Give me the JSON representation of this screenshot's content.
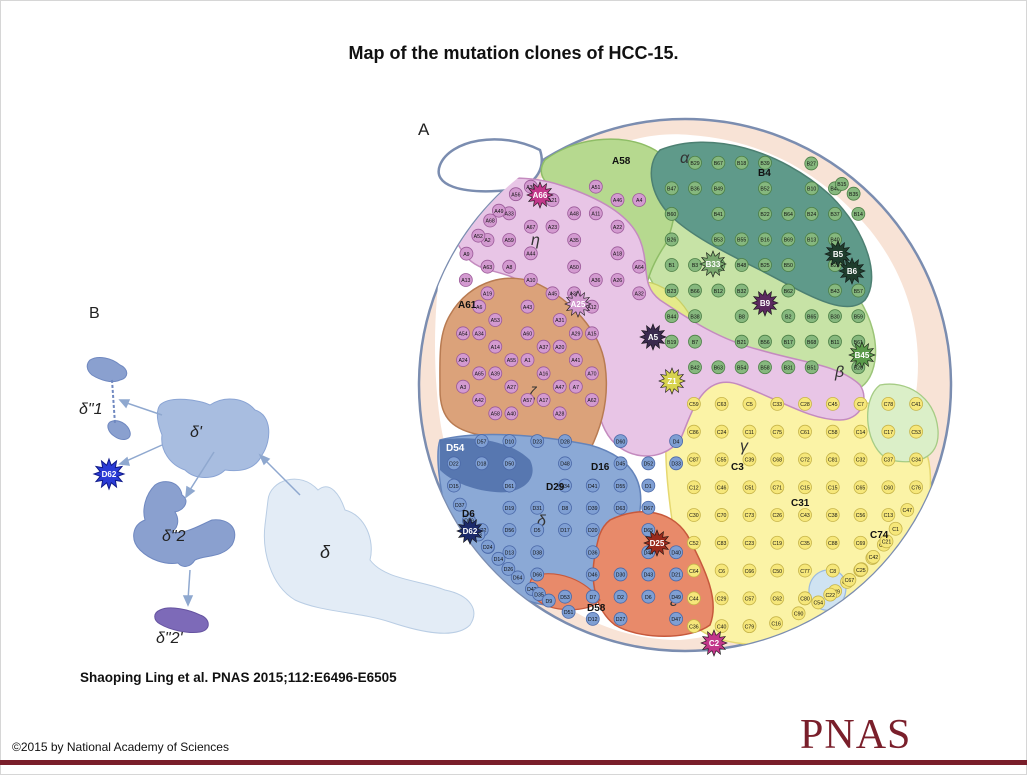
{
  "title": "Map of the mutation clones of HCC-15.",
  "citation": "Shaoping Ling et al. PNAS 2015;112:E6496-E6505",
  "copyright": "©2015 by National Academy of Sciences",
  "logo": "PNAS",
  "panelA": {
    "label": "A",
    "greek": [
      "α",
      "η",
      "ζ",
      "β",
      "γ",
      "δ",
      "ε"
    ],
    "highlights": [
      "A66",
      "A25",
      "A5",
      "Z1",
      "B33",
      "B9",
      "B5",
      "B6",
      "B45",
      "C2",
      "D25",
      "D62"
    ],
    "regionTexts": [
      "A61",
      "A58",
      "B4",
      "C3",
      "C31",
      "C74",
      "D16",
      "D29",
      "D54",
      "D6",
      "D58"
    ],
    "cells": [
      "A2",
      "A58",
      "A67",
      "A57",
      "A48",
      "A47",
      "A46",
      "A70",
      "A68",
      "A65",
      "A56",
      "A55",
      "A45",
      "A37",
      "A36",
      "A29",
      "A64",
      "A54",
      "A63",
      "A53",
      "A44",
      "A43",
      "A35",
      "A28",
      "A22",
      "A62",
      "A52",
      "A42",
      "A33",
      "A27",
      "A21",
      "A16",
      "A51",
      "A41",
      "A32",
      "A24",
      "A19",
      "A14",
      "A10",
      "A60",
      "A50",
      "A31",
      "A18",
      "A12",
      "A9",
      "A6",
      "A59",
      "A40",
      "A23",
      "A17",
      "A11",
      "A7",
      "A4",
      "A3",
      "A49",
      "A39",
      "A30",
      "A1",
      "A38",
      "A20",
      "A26",
      "A15",
      "A13",
      "A34",
      "A8",
      "B3",
      "B63",
      "B55",
      "B56",
      "B64",
      "B65",
      "B46",
      "B57",
      "B47",
      "B66",
      "B67",
      "B48",
      "B58",
      "B69",
      "B68",
      "B37",
      "B59",
      "B60",
      "B38",
      "B49",
      "B32",
      "B39",
      "B50",
      "B51",
      "B40",
      "B61",
      "B26",
      "B7",
      "B41",
      "B8",
      "B52",
      "B62",
      "B27",
      "B28",
      "B20",
      "B1",
      "B42",
      "B53",
      "B21",
      "B22",
      "B2",
      "B10",
      "B43",
      "B15",
      "B23",
      "B29",
      "B34",
      "B54",
      "B16",
      "B17",
      "B24",
      "B30",
      "B35",
      "B44",
      "B36",
      "B12",
      "B18",
      "B25",
      "B31",
      "B13",
      "B11",
      "B14",
      "B19",
      "C9",
      "C82",
      "C85",
      "C89",
      "C4",
      "C10",
      "C17",
      "C1",
      "C86",
      "C83",
      "C5",
      "C26",
      "C90",
      "C15",
      "C27",
      "C37",
      "C48",
      "C87",
      "C6",
      "C11",
      "C19",
      "C28",
      "C38",
      "C49",
      "C60",
      "C84",
      "C12",
      "C29",
      "C39",
      "C50",
      "C61",
      "C88",
      "C7",
      "C13",
      "C20",
      "C30",
      "C40",
      "C51",
      "C62",
      "C72",
      "C8",
      "C14",
      "C21",
      "C41",
      "C52",
      "C63",
      "C73",
      "C16",
      "C15b",
      "C22",
      "C32",
      "C42",
      "C53",
      "C64",
      "C24",
      "C23",
      "C33",
      "C43",
      "C54",
      "C65",
      "C25",
      "C34",
      "C44",
      "C55",
      "C66",
      "C75",
      "C35",
      "C45",
      "C56",
      "C67",
      "C76",
      "C36",
      "C46",
      "C57",
      "C68",
      "C77",
      "C58",
      "C69",
      "C78",
      "C47",
      "C59",
      "C70",
      "C79",
      "C71",
      "C80",
      "C81",
      "D32",
      "D42",
      "D31",
      "D53",
      "D41",
      "D30",
      "D52",
      "D40",
      "D22",
      "D11",
      "D10",
      "D5",
      "D51",
      "D39",
      "D2",
      "D1",
      "D21",
      "D15",
      "D14",
      "D50",
      "D38",
      "D28",
      "D20",
      "D27",
      "D67",
      "D49",
      "D37",
      "D26",
      "D61",
      "D66",
      "D48",
      "D36",
      "D60",
      "D65",
      "D47",
      "D59",
      "D64",
      "D19",
      "D35",
      "D34",
      "D46",
      "D45",
      "D44",
      "D4",
      "D3",
      "D57",
      "D56",
      "D9",
      "D8",
      "D7",
      "D55",
      "D43",
      "D33",
      "D24",
      "D18",
      "D13",
      "D23",
      "D17",
      "D12",
      "D63",
      "D6b"
    ]
  },
  "panelB": {
    "label": "B",
    "labels": [
      "δ\"1",
      "δ'",
      "δ\"2",
      "δ\"2'",
      "δ"
    ],
    "badge": "D62"
  }
}
